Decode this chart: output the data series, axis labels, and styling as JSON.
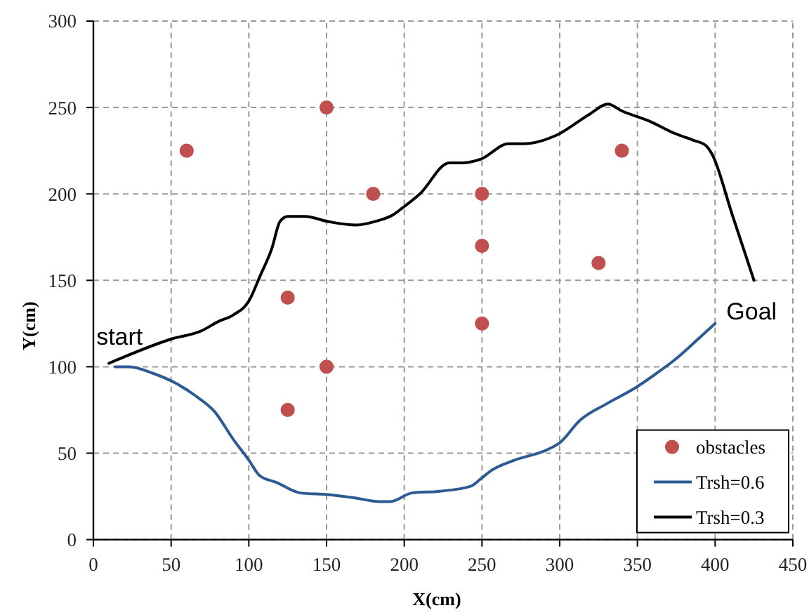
{
  "chart_data": {
    "type": "line",
    "xlabel": "X(cm)",
    "ylabel": "Y(cm)",
    "xlim": [
      0,
      450
    ],
    "ylim": [
      0,
      300
    ],
    "xticks": [
      0,
      50,
      100,
      150,
      200,
      250,
      300,
      350,
      400,
      450
    ],
    "yticks": [
      0,
      50,
      100,
      150,
      200,
      250,
      300
    ],
    "grid": true,
    "legend": "bottom right",
    "series": [
      {
        "name": "obstacles",
        "type": "scatter",
        "marker": "circle",
        "color": "#c0504d",
        "x": [
          60,
          150,
          180,
          125,
          150,
          125,
          250,
          250,
          250,
          325,
          340
        ],
        "values": [
          225,
          250,
          200,
          140,
          100,
          75,
          200,
          170,
          125,
          160,
          225
        ]
      },
      {
        "name": "Trsh=0.6",
        "color": "#2c5b94",
        "x": [
          14,
          23,
          39,
          54,
          66,
          78,
          90,
          100,
          107,
          118,
          133,
          151,
          169,
          184,
          191,
          205,
          223,
          243,
          249,
          256,
          271,
          292,
          300,
          313,
          331,
          349,
          362,
          374,
          389,
          400
        ],
        "values": [
          100,
          100,
          96,
          90,
          83,
          74,
          58,
          46,
          37,
          33,
          27,
          26,
          24,
          22,
          22,
          27,
          28,
          31,
          35,
          40,
          46,
          52,
          56,
          69,
          79,
          88,
          96,
          104,
          116,
          125
        ]
      },
      {
        "name": "Trsh=0.3",
        "color": "#000000",
        "x": [
          10,
          50,
          70,
          80,
          90,
          100,
          107,
          115,
          120,
          125,
          136,
          151,
          169,
          181,
          193,
          199,
          210,
          229,
          238,
          249,
          267,
          277,
          298,
          319,
          331,
          340,
          358,
          374,
          386,
          394,
          398,
          411,
          425
        ],
        "values": [
          102,
          116,
          121,
          126,
          130,
          138,
          152,
          169,
          184,
          187,
          187,
          184,
          182,
          184,
          188,
          192,
          200,
          218,
          218,
          220,
          229,
          229,
          234,
          246,
          252,
          248,
          242,
          235,
          231,
          228,
          223,
          188,
          150
        ]
      }
    ],
    "annotations": [
      {
        "text": "start",
        "x": 10,
        "y": 102
      },
      {
        "text": "Goal",
        "x": 400,
        "y": 125
      }
    ]
  }
}
